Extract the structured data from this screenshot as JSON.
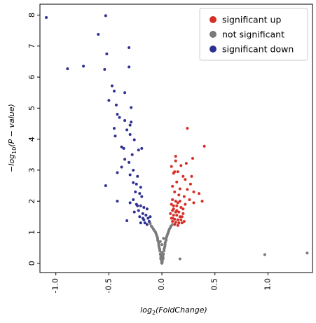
{
  "chart_data": {
    "type": "scatter",
    "xlabel": "log2(FoldChange)",
    "ylabel": "-log10(P - value)",
    "xlim": [
      -1.15,
      1.42
    ],
    "ylim": [
      -0.3,
      8.35
    ],
    "xticks": [
      -1.0,
      -0.5,
      0.0,
      0.5,
      1.0
    ],
    "xtick_labels": [
      "-1.0",
      "-0.5",
      "0.0",
      "0.5",
      "1.0"
    ],
    "yticks": [
      0,
      1,
      2,
      3,
      4,
      5,
      6,
      7,
      8
    ],
    "ytick_labels": [
      "0",
      "1",
      "2",
      "3",
      "4",
      "5",
      "6",
      "7",
      "8"
    ],
    "grid": false,
    "legend_position": "top-right",
    "series": [
      {
        "name": "significant up",
        "color": "#d62f27",
        "points": [
          [
            0.24,
            4.35
          ],
          [
            0.4,
            3.77
          ],
          [
            0.13,
            3.45
          ],
          [
            0.13,
            3.3
          ],
          [
            0.18,
            3.15
          ],
          [
            0.23,
            3.22
          ],
          [
            0.29,
            3.38
          ],
          [
            0.09,
            3.12
          ],
          [
            0.12,
            2.95
          ],
          [
            0.15,
            2.95
          ],
          [
            0.11,
            2.9
          ],
          [
            0.2,
            2.8
          ],
          [
            0.28,
            2.8
          ],
          [
            0.22,
            2.7
          ],
          [
            0.27,
            2.55
          ],
          [
            0.14,
            2.62
          ],
          [
            0.1,
            2.48
          ],
          [
            0.17,
            2.4
          ],
          [
            0.24,
            2.38
          ],
          [
            0.3,
            2.3
          ],
          [
            0.35,
            2.25
          ],
          [
            0.12,
            2.3
          ],
          [
            0.16,
            2.2
          ],
          [
            0.21,
            2.15
          ],
          [
            0.26,
            2.05
          ],
          [
            0.1,
            2.05
          ],
          [
            0.13,
            2.0
          ],
          [
            0.15,
            1.95
          ],
          [
            0.38,
            2.0
          ],
          [
            0.3,
            1.95
          ],
          [
            0.22,
            1.9
          ],
          [
            0.09,
            1.9
          ],
          [
            0.11,
            1.85
          ],
          [
            0.14,
            1.85
          ],
          [
            0.18,
            1.8
          ],
          [
            0.2,
            1.75
          ],
          [
            0.1,
            1.7
          ],
          [
            0.13,
            1.65
          ],
          [
            0.16,
            1.65
          ],
          [
            0.08,
            1.6
          ],
          [
            0.11,
            1.55
          ],
          [
            0.14,
            1.55
          ],
          [
            0.17,
            1.5
          ],
          [
            0.19,
            1.5
          ],
          [
            0.09,
            1.45
          ],
          [
            0.12,
            1.42
          ],
          [
            0.15,
            1.4
          ],
          [
            0.18,
            1.4
          ],
          [
            0.1,
            1.35
          ],
          [
            0.13,
            1.32
          ],
          [
            0.16,
            1.3
          ],
          [
            0.21,
            1.35
          ],
          [
            0.12,
            1.25
          ],
          [
            0.15,
            1.22
          ],
          [
            0.1,
            1.45
          ],
          [
            0.2,
            1.6
          ],
          [
            0.11,
            1.75
          ],
          [
            0.17,
            2.0
          ],
          [
            0.14,
            1.7
          ],
          [
            0.19,
            1.3
          ]
        ]
      },
      {
        "name": "not significant",
        "color": "#7a7a7a",
        "points": [
          [
            0.97,
            0.28
          ],
          [
            1.37,
            0.33
          ],
          [
            0.17,
            0.14
          ],
          [
            -0.1,
            1.2
          ],
          [
            -0.08,
            1.1
          ],
          [
            -0.06,
            1.0
          ],
          [
            -0.05,
            0.9
          ],
          [
            -0.04,
            0.8
          ],
          [
            -0.035,
            0.7
          ],
          [
            -0.03,
            0.6
          ],
          [
            -0.025,
            0.5
          ],
          [
            -0.02,
            0.4
          ],
          [
            -0.015,
            0.3
          ],
          [
            -0.01,
            0.2
          ],
          [
            -0.005,
            0.1
          ],
          [
            0.0,
            0.05
          ],
          [
            0.005,
            0.1
          ],
          [
            0.01,
            0.2
          ],
          [
            0.015,
            0.3
          ],
          [
            0.02,
            0.4
          ],
          [
            0.025,
            0.5
          ],
          [
            0.03,
            0.6
          ],
          [
            0.035,
            0.7
          ],
          [
            0.04,
            0.8
          ],
          [
            0.05,
            0.9
          ],
          [
            0.06,
            1.0
          ],
          [
            0.07,
            1.1
          ],
          [
            0.085,
            1.2
          ],
          [
            -0.09,
            1.15
          ],
          [
            0.08,
            1.15
          ],
          [
            -0.07,
            1.05
          ],
          [
            0.065,
            1.05
          ],
          [
            -0.045,
            0.85
          ],
          [
            0.045,
            0.85
          ],
          [
            -0.03,
            0.65
          ],
          [
            0.03,
            0.65
          ],
          [
            -0.02,
            0.45
          ],
          [
            0.02,
            0.45
          ],
          [
            -0.01,
            0.25
          ],
          [
            0.01,
            0.25
          ],
          [
            0.0,
            0.0
          ],
          [
            -0.003,
            0.02
          ],
          [
            0.003,
            0.03
          ],
          [
            -0.012,
            0.15
          ],
          [
            0.012,
            0.15
          ],
          [
            -0.028,
            0.55
          ],
          [
            0.028,
            0.55
          ],
          [
            -0.04,
            0.75
          ],
          [
            0.04,
            0.75
          ],
          [
            -0.055,
            0.95
          ],
          [
            0.055,
            0.95
          ],
          [
            0.1,
            1.25
          ],
          [
            -0.11,
            1.28
          ],
          [
            0.0,
            0.35
          ],
          [
            0.0,
            0.6
          ],
          [
            -0.015,
            0.7
          ],
          [
            0.015,
            0.8
          ]
        ]
      },
      {
        "name": "significant down",
        "color": "#2e3192",
        "points": [
          [
            -1.09,
            7.92
          ],
          [
            -0.53,
            7.98
          ],
          [
            -0.6,
            7.38
          ],
          [
            -0.52,
            6.75
          ],
          [
            -0.31,
            6.95
          ],
          [
            -0.89,
            6.27
          ],
          [
            -0.74,
            6.35
          ],
          [
            -0.54,
            6.25
          ],
          [
            -0.31,
            6.33
          ],
          [
            -0.47,
            5.72
          ],
          [
            -0.45,
            5.55
          ],
          [
            -0.35,
            5.5
          ],
          [
            -0.5,
            5.25
          ],
          [
            -0.43,
            5.1
          ],
          [
            -0.29,
            5.02
          ],
          [
            -0.42,
            4.8
          ],
          [
            -0.4,
            4.7
          ],
          [
            -0.35,
            4.6
          ],
          [
            -0.29,
            4.55
          ],
          [
            -0.3,
            4.45
          ],
          [
            -0.45,
            4.35
          ],
          [
            -0.33,
            4.3
          ],
          [
            -0.3,
            4.15
          ],
          [
            -0.44,
            4.1
          ],
          [
            -0.26,
            3.98
          ],
          [
            -0.38,
            3.75
          ],
          [
            -0.36,
            3.7
          ],
          [
            -0.22,
            3.65
          ],
          [
            -0.19,
            3.7
          ],
          [
            -0.28,
            3.5
          ],
          [
            -0.35,
            3.35
          ],
          [
            -0.31,
            3.25
          ],
          [
            -0.38,
            3.1
          ],
          [
            -0.42,
            2.92
          ],
          [
            -0.27,
            3.0
          ],
          [
            -0.3,
            2.85
          ],
          [
            -0.23,
            2.8
          ],
          [
            -0.27,
            2.6
          ],
          [
            -0.24,
            2.55
          ],
          [
            -0.2,
            2.45
          ],
          [
            -0.53,
            2.5
          ],
          [
            -0.25,
            2.3
          ],
          [
            -0.21,
            2.25
          ],
          [
            -0.19,
            2.15
          ],
          [
            -0.27,
            2.05
          ],
          [
            -0.42,
            2.0
          ],
          [
            -0.3,
            1.95
          ],
          [
            -0.24,
            1.9
          ],
          [
            -0.2,
            1.85
          ],
          [
            -0.17,
            1.8
          ],
          [
            -0.14,
            1.75
          ],
          [
            -0.22,
            1.7
          ],
          [
            -0.26,
            1.65
          ],
          [
            -0.18,
            1.6
          ],
          [
            -0.15,
            1.55
          ],
          [
            -0.21,
            1.5
          ],
          [
            -0.13,
            1.45
          ],
          [
            -0.17,
            1.4
          ],
          [
            -0.33,
            1.37
          ],
          [
            -0.12,
            1.35
          ],
          [
            -0.16,
            1.3
          ],
          [
            -0.2,
            1.3
          ],
          [
            -0.14,
            1.25
          ],
          [
            -0.18,
            1.45
          ],
          [
            -0.11,
            1.5
          ],
          [
            -0.23,
            1.85
          ]
        ]
      }
    ]
  }
}
